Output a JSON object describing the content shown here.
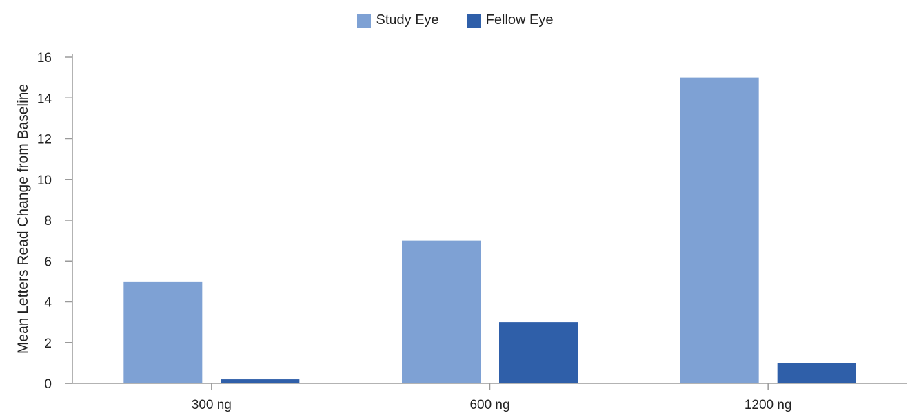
{
  "chart_data": {
    "type": "bar",
    "categories": [
      "300 ng",
      "600 ng",
      "1200 ng"
    ],
    "series": [
      {
        "name": "Study Eye",
        "values": [
          5,
          7,
          15
        ],
        "color": "#7ea1d4"
      },
      {
        "name": "Fellow Eye",
        "values": [
          0.2,
          3,
          1
        ],
        "color": "#2f5fa9"
      }
    ],
    "title": "",
    "xlabel": "",
    "ylabel": "Mean Letters Read Change from Baseline",
    "ylim": [
      0,
      16
    ],
    "yticks": [
      "0",
      "2",
      "4",
      "6",
      "8",
      "10",
      "12",
      "14",
      "16"
    ],
    "grid": false,
    "legend_position": "top-center"
  }
}
